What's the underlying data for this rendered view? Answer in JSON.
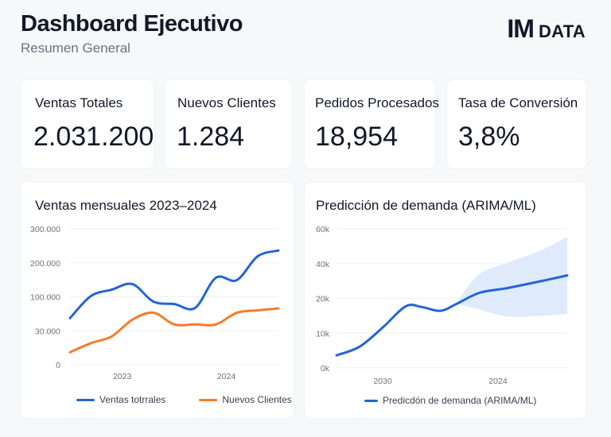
{
  "header": {
    "title": "Dashboard Ejecutivo",
    "subtitle": "Resumen General"
  },
  "logo": {
    "im": "IM",
    "data": "DATA"
  },
  "kpis": [
    {
      "label": "Ventas Totales",
      "value": "2.031.200"
    },
    {
      "label": "Nuevos Clientes",
      "value": "1.284"
    },
    {
      "label": "Pedidos Procesados",
      "value": "18,954"
    },
    {
      "label": "Tasa de Conversión",
      "value": "3,8%"
    }
  ],
  "colors": {
    "blue": "#2563d9",
    "orange": "#f57b2a",
    "band": "#dce8fb",
    "grid": "#eef0f2"
  },
  "chart_data": [
    {
      "type": "line",
      "title": "Ventas mensuales 2023–2024",
      "xlabel": "",
      "ylabel": "",
      "y_ticks": [
        0,
        30000,
        100000,
        200000,
        300000
      ],
      "y_tick_labels": [
        "0",
        "30.000",
        "100.000",
        "200.000",
        "300.000"
      ],
      "x_tick_labels": [
        "2023",
        "2024"
      ],
      "x_tick_positions": [
        2.5,
        7.5
      ],
      "x_range": [
        0,
        10
      ],
      "grid": true,
      "legend_position": "bottom",
      "x": [
        0,
        1,
        2,
        3,
        4,
        5,
        6,
        7,
        8,
        9,
        10
      ],
      "series": [
        {
          "name": "Ventas totrrales",
          "color": "#2563d9",
          "values": [
            56000,
            102000,
            121000,
            137000,
            90000,
            85000,
            77000,
            156000,
            149000,
            219000,
            236000
          ]
        },
        {
          "name": "Nuevos Clientes",
          "color": "#f57b2a",
          "values": [
            11000,
            19000,
            25000,
            53000,
            67000,
            43000,
            43000,
            43000,
            67000,
            72000,
            76000
          ]
        }
      ]
    },
    {
      "type": "area",
      "title": "Predicción de demanda (ARIMA/ML)",
      "xlabel": "",
      "ylabel": "",
      "y_ticks": [
        0,
        10000,
        20000,
        40000,
        60000
      ],
      "y_tick_labels": [
        "0k",
        "10k",
        "20k",
        "40k",
        "60k"
      ],
      "x_tick_labels": [
        "2030",
        "2024"
      ],
      "x_tick_positions": [
        2,
        7
      ],
      "x_range": [
        0,
        10
      ],
      "grid": true,
      "legend_position": "bottom",
      "series": [
        {
          "name": "Predicdón de demanda (ARIMA/ML)",
          "color": "#2563d9",
          "x": [
            0,
            1,
            2,
            3,
            3.7,
            4.5,
            5.2,
            6.2,
            7.4,
            8.9,
            10
          ],
          "values": [
            3600,
            6100,
            11600,
            17700,
            17500,
            16400,
            18400,
            23200,
            25900,
            30000,
            33200
          ]
        }
      ],
      "confidence_band": {
        "x": [
          5.2,
          6.1,
          7.4,
          8.9,
          10
        ],
        "upper": [
          18400,
          33000,
          40500,
          47800,
          55500
        ],
        "lower": [
          18400,
          17000,
          14800,
          15000,
          15500
        ]
      }
    }
  ]
}
